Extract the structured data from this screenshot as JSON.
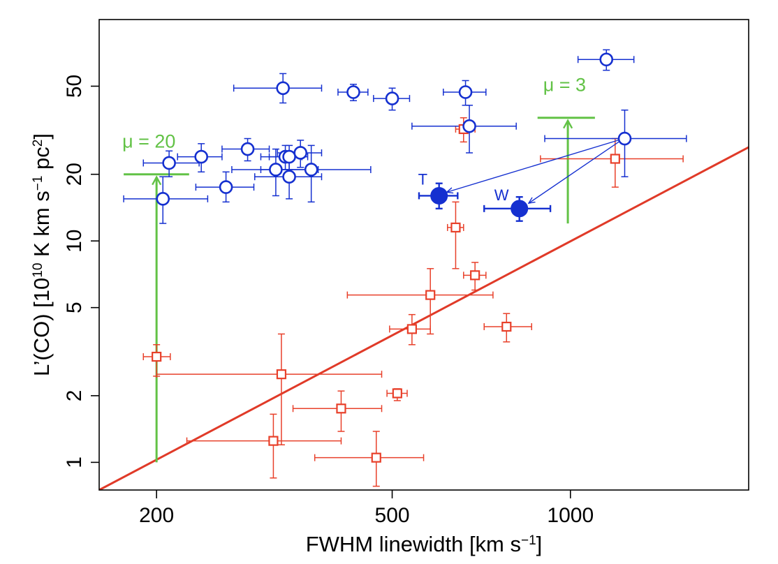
{
  "chart_data": {
    "type": "scatter",
    "xlabel": "FWHM linewidth [km s",
    "xlabel_sup": "−1",
    "xlabel_end": "]",
    "ylabel_pre": "L’(CO) [10",
    "ylabel_sup1": "10",
    "ylabel_mid": " K km s",
    "ylabel_sup2": "−1",
    "ylabel_pc": " pc",
    "ylabel_sup3": "2",
    "ylabel_end": "]",
    "xscale": "log",
    "yscale": "log",
    "xlim": [
      160,
      2000
    ],
    "ylim": [
      0.75,
      100
    ],
    "x_ticks": [
      {
        "value": 200,
        "label": "200"
      },
      {
        "value": 500,
        "label": "500"
      },
      {
        "value": 1000,
        "label": "1000"
      }
    ],
    "y_ticks": [
      {
        "value": 1,
        "label": "1"
      },
      {
        "value": 2,
        "label": "2"
      },
      {
        "value": 5,
        "label": "5"
      },
      {
        "value": 10,
        "label": "10"
      },
      {
        "value": 20,
        "label": "20"
      },
      {
        "value": 50,
        "label": "50"
      }
    ],
    "grid": false,
    "series": [
      {
        "marker": "open-square",
        "color": "#e8402a",
        "points": [
          {
            "x": 200,
            "y": 3.0,
            "xlo": 190,
            "xhi": 211,
            "ylo": 2.45,
            "yhi": 3.4
          },
          {
            "x": 325,
            "y": 2.5,
            "xlo": 200,
            "xhi": 480,
            "ylo": 1.2,
            "yhi": 3.8
          },
          {
            "x": 315,
            "y": 1.25,
            "xlo": 225,
            "xhi": 410,
            "ylo": 0.85,
            "yhi": 1.65
          },
          {
            "x": 410,
            "y": 1.75,
            "xlo": 340,
            "xhi": 480,
            "ylo": 1.38,
            "yhi": 2.1
          },
          {
            "x": 470,
            "y": 1.05,
            "xlo": 370,
            "xhi": 565,
            "ylo": 0.78,
            "yhi": 1.38
          },
          {
            "x": 510,
            "y": 2.05,
            "xlo": 490,
            "xhi": 530,
            "ylo": 1.9,
            "yhi": 2.15
          },
          {
            "x": 540,
            "y": 4.0,
            "xlo": 495,
            "xhi": 580,
            "ylo": 3.4,
            "yhi": 4.65
          },
          {
            "x": 580,
            "y": 5.7,
            "xlo": 420,
            "xhi": 740,
            "ylo": 3.8,
            "yhi": 7.5
          },
          {
            "x": 640,
            "y": 11.5,
            "xlo": 620,
            "xhi": 660,
            "ylo": 7.5,
            "yhi": 15
          },
          {
            "x": 690,
            "y": 7.0,
            "xlo": 660,
            "xhi": 720,
            "ylo": 6.0,
            "yhi": 8.0
          },
          {
            "x": 780,
            "y": 4.1,
            "xlo": 715,
            "xhi": 860,
            "ylo": 3.5,
            "yhi": 4.7
          },
          {
            "x": 660,
            "y": 32,
            "xlo": 640,
            "xhi": 690,
            "ylo": 28,
            "yhi": 36
          },
          {
            "x": 1190,
            "y": 23.5,
            "xlo": 890,
            "xhi": 1550,
            "ylo": 17.5,
            "yhi": 29
          }
        ]
      },
      {
        "marker": "open-circle",
        "color": "#1530d0",
        "points": [
          {
            "x": 205,
            "y": 15.5,
            "xlo": 176,
            "xhi": 244,
            "ylo": 12,
            "yhi": 19.5
          },
          {
            "x": 210,
            "y": 22.5,
            "xlo": 190,
            "xhi": 236,
            "ylo": 19.5,
            "yhi": 25.5
          },
          {
            "x": 238,
            "y": 24,
            "xlo": 217,
            "xhi": 258,
            "ylo": 20.5,
            "yhi": 27.5
          },
          {
            "x": 262,
            "y": 17.5,
            "xlo": 233,
            "xhi": 292,
            "ylo": 15,
            "yhi": 20.5
          },
          {
            "x": 285,
            "y": 26,
            "xlo": 258,
            "xhi": 310,
            "ylo": 23,
            "yhi": 29
          },
          {
            "x": 318,
            "y": 21,
            "xlo": 268,
            "xhi": 375,
            "ylo": 16,
            "yhi": 26
          },
          {
            "x": 330,
            "y": 24,
            "xlo": 300,
            "xhi": 352,
            "ylo": 21,
            "yhi": 27
          },
          {
            "x": 335,
            "y": 24,
            "xlo": 310,
            "xhi": 360,
            "ylo": 21,
            "yhi": 27
          },
          {
            "x": 335,
            "y": 19.5,
            "xlo": 293,
            "xhi": 380,
            "ylo": 15.5,
            "yhi": 23.5
          },
          {
            "x": 350,
            "y": 25,
            "xlo": 320,
            "xhi": 380,
            "ylo": 21.5,
            "yhi": 28.5
          },
          {
            "x": 365,
            "y": 21,
            "xlo": 300,
            "xhi": 460,
            "ylo": 15,
            "yhi": 27
          },
          {
            "x": 327,
            "y": 49,
            "xlo": 270,
            "xhi": 380,
            "ylo": 42,
            "yhi": 57
          },
          {
            "x": 430,
            "y": 47,
            "xlo": 405,
            "xhi": 455,
            "ylo": 43,
            "yhi": 51
          },
          {
            "x": 500,
            "y": 44,
            "xlo": 465,
            "xhi": 535,
            "ylo": 39,
            "yhi": 49
          },
          {
            "x": 665,
            "y": 47,
            "xlo": 610,
            "xhi": 720,
            "ylo": 41,
            "yhi": 53
          },
          {
            "x": 675,
            "y": 33,
            "xlo": 540,
            "xhi": 810,
            "ylo": 25,
            "yhi": 41
          },
          {
            "x": 1150,
            "y": 66,
            "xlo": 1030,
            "xhi": 1280,
            "ylo": 59,
            "yhi": 73
          },
          {
            "x": 1235,
            "y": 29,
            "xlo": 905,
            "xhi": 1570,
            "ylo": 19.5,
            "yhi": 39
          }
        ]
      },
      {
        "marker": "filled-circle",
        "color": "#1530d0",
        "points": [
          {
            "x": 600,
            "y": 16,
            "xlo": 555,
            "xhi": 645,
            "ylo": 14,
            "yhi": 18.2,
            "label": "T"
          },
          {
            "x": 820,
            "y": 14,
            "xlo": 715,
            "xhi": 925,
            "ylo": 12.3,
            "yhi": 15.8,
            "label": "W"
          }
        ]
      }
    ],
    "fit_line": {
      "color": "#e03a28",
      "points": [
        [
          160,
          0.75
        ],
        [
          2000,
          26.5
        ]
      ]
    },
    "lensing_annotations": [
      {
        "label": "μ = 20",
        "x": 200,
        "y_from": 1.0,
        "y_to": 20,
        "bar_x": [
          176,
          227
        ],
        "color": "#62c246"
      },
      {
        "label": "μ = 3",
        "x": 990,
        "y_from": 12,
        "y_to": 36,
        "bar_x": [
          880,
          1100
        ],
        "color": "#62c246"
      }
    ],
    "arrows": [
      {
        "from": [
          1230,
          29
        ],
        "to": [
          618,
          16.6
        ],
        "color": "#1530d0"
      },
      {
        "from": [
          1230,
          29
        ],
        "to": [
          850,
          14.8
        ],
        "color": "#1530d0"
      }
    ]
  }
}
